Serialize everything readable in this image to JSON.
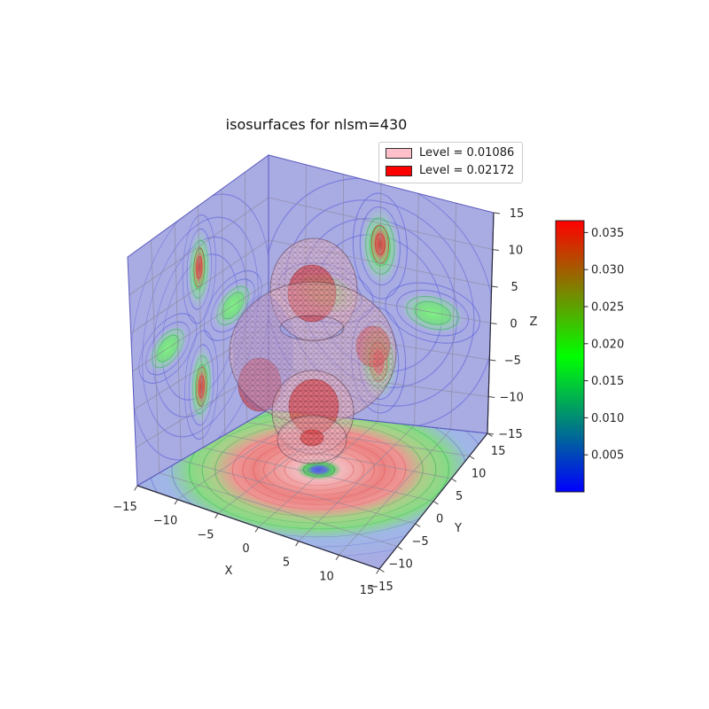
{
  "figure": {
    "title": "isosurfaces for nlsm=430"
  },
  "legend": {
    "entries": [
      {
        "label": "Level = 0.01086",
        "color": "#ffc0cb"
      },
      {
        "label": "Level = 0.02172",
        "color": "#ff0000"
      }
    ]
  },
  "axes": {
    "x": {
      "label": "X",
      "ticks": [
        "−15",
        "−10",
        "−5",
        "0",
        "5",
        "10",
        "15"
      ]
    },
    "y": {
      "label": "Y",
      "ticks": [
        "−15",
        "−10",
        "−5",
        "0",
        "5",
        "10",
        "15"
      ]
    },
    "z": {
      "label": "Z",
      "ticks": [
        "−15",
        "−10",
        "−5",
        "0",
        "5",
        "10",
        "15"
      ]
    }
  },
  "colorbar": {
    "ticks": [
      "0.005",
      "0.010",
      "0.015",
      "0.020",
      "0.025",
      "0.030",
      "0.035"
    ],
    "bottom_color": "#0000ff",
    "middle_color": "#00ff00",
    "top_color": "#ff0000"
  },
  "chart_data": {
    "type": "3d-isosurface",
    "title": "isosurfaces for nlsm=430",
    "xlabel": "X",
    "ylabel": "Y",
    "zlabel": "Z",
    "xlim": [
      -15,
      15
    ],
    "ylim": [
      -15,
      15
    ],
    "zlim": [
      -15,
      15
    ],
    "xticks": [
      -15,
      -10,
      -5,
      0,
      5,
      10,
      15
    ],
    "yticks": [
      -15,
      -10,
      -5,
      0,
      5,
      10,
      15
    ],
    "zticks": [
      -15,
      -10,
      -5,
      0,
      5,
      10,
      15
    ],
    "isosurfaces": [
      {
        "level": 0.01086,
        "color": "pink",
        "style": "translucent triangular mesh"
      },
      {
        "level": 0.02172,
        "color": "red",
        "style": "translucent triangular mesh nested inside"
      }
    ],
    "colorbar": {
      "vmin": 0.0,
      "vmax": 0.0366,
      "ticks": [
        0.005,
        0.01,
        0.015,
        0.02,
        0.025,
        0.03,
        0.035
      ],
      "colormap": "blue-green-red"
    },
    "projections": {
      "panes": [
        "x=-15 wall",
        "y=15 wall",
        "z=-15 floor"
      ],
      "style": "filled contour projections; side walls show four-lobed pattern (strong lobes along +z/-z with red cores, weaker equatorial lobes in green) on lavender background; floor shows concentric rings with red annulus, outer green ring and small blue node at center"
    },
    "structure": "d_z2-like density: upper and lower lobes along z plus an equatorial torus; inner red surfaces (level 0.02172) nested inside outer pink surfaces (level 0.01086)"
  }
}
